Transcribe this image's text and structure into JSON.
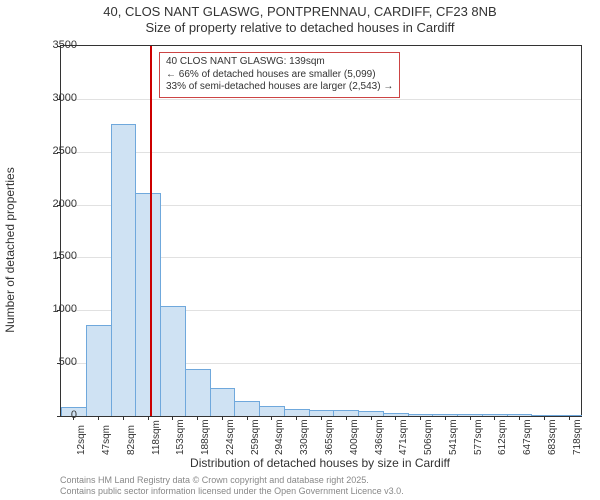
{
  "chart": {
    "type": "histogram",
    "title_line1": "40, CLOS NANT GLASWG, PONTPRENNAU, CARDIFF, CF23 8NB",
    "title_line2": "Size of property relative to detached houses in Cardiff",
    "title_fontsize": 13,
    "x_label": "Distribution of detached houses by size in Cardiff",
    "y_label": "Number of detached properties",
    "label_fontsize": 12,
    "x_ticks": [
      "12sqm",
      "47sqm",
      "82sqm",
      "118sqm",
      "153sqm",
      "188sqm",
      "224sqm",
      "259sqm",
      "294sqm",
      "330sqm",
      "365sqm",
      "400sqm",
      "436sqm",
      "471sqm",
      "506sqm",
      "541sqm",
      "577sqm",
      "612sqm",
      "647sqm",
      "683sqm",
      "718sqm"
    ],
    "y_ticks": [
      0,
      500,
      1000,
      1500,
      2000,
      2500,
      3000,
      3500
    ],
    "ylim": [
      0,
      3500
    ],
    "bar_values": [
      80,
      850,
      2750,
      2100,
      1030,
      440,
      260,
      130,
      90,
      60,
      50,
      45,
      35,
      15,
      10,
      10,
      8,
      5,
      5,
      4,
      3
    ],
    "bar_color": "#cfe2f3",
    "bar_border_color": "#6fa8dc",
    "background_color": "#ffffff",
    "grid_color": "#333333",
    "grid_opacity": 0.15,
    "reference_line_position": 3.6,
    "reference_line_color": "#cc0000",
    "annotation": {
      "line1": "40 CLOS NANT GLASWG: 139sqm",
      "line2": "← 66% of detached houses are smaller (5,099)",
      "line3": "33% of semi-detached houses are larger (2,543) →",
      "border_color": "#cc4444",
      "fontsize": 10
    },
    "copyright_line1": "Contains HM Land Registry data © Crown copyright and database right 2025.",
    "copyright_line2": "Contains public sector information licensed under the Open Government Licence v3.0."
  }
}
